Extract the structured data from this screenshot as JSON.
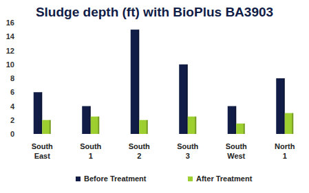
{
  "chart_data": {
    "type": "bar",
    "title": "Sludge depth (ft) with BioPlus BA3903",
    "categories": [
      "South East",
      "South 1",
      "South 2",
      "South 3",
      "South West",
      "North 1"
    ],
    "series": [
      {
        "name": "Before Treatment",
        "color": "#111d47",
        "values": [
          6,
          4,
          15,
          10,
          4,
          8
        ]
      },
      {
        "name": "After Treatment",
        "color": "#9ccf2f",
        "values": [
          2,
          2.5,
          2,
          2.5,
          1.5,
          3
        ]
      }
    ],
    "ylim": [
      0,
      16
    ],
    "yticks": [
      0,
      2,
      4,
      6,
      8,
      10,
      12,
      14,
      16
    ],
    "grid": false,
    "legend": "bottom"
  }
}
